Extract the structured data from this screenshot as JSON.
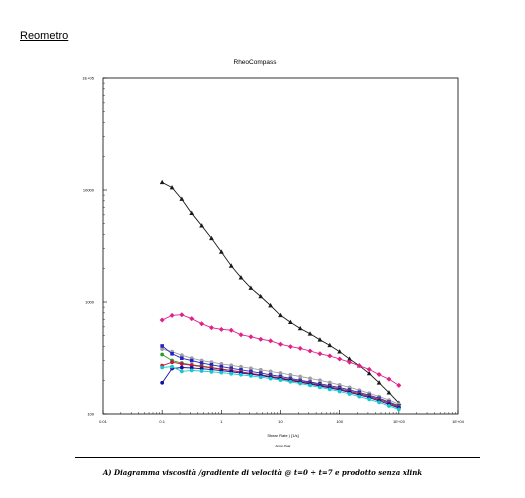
{
  "heading": "Reometro",
  "caption": "A) Diagramma viscosità /gradiente di velocità @ t=0 ÷ t=7 e prodotto senza xlink",
  "chart_data": {
    "type": "line",
    "title": "RheoCompass",
    "xlabel": "Shear Rate   )    [1/s]",
    "footer": "Anton Paar",
    "x_scale": "log",
    "y_scale": "log",
    "xlim": [
      0.01,
      10000
    ],
    "ylim": [
      100,
      100000
    ],
    "x_ticks": [
      "0.01",
      "0.1",
      "1",
      "10",
      "100",
      "1E+03",
      "1E+04"
    ],
    "y_ticks": [
      "100",
      "1000",
      "10000",
      "1E+05"
    ],
    "grid": false,
    "series": [
      {
        "color": "#1a1a1a",
        "marker": "triangle",
        "x": [
          0.1,
          0.147,
          0.215,
          0.316,
          0.464,
          0.681,
          1,
          1.47,
          2.15,
          3.16,
          4.64,
          6.81,
          10,
          14.7,
          21.5,
          31.6,
          46.4,
          68.1,
          100,
          147,
          215,
          316,
          464,
          681,
          1000
        ],
        "y": [
          11700,
          10500,
          8300,
          6200,
          4800,
          3700,
          2800,
          2100,
          1650,
          1330,
          1120,
          930,
          760,
          660,
          580,
          520,
          460,
          410,
          360,
          310,
          270,
          230,
          190,
          155,
          125
        ]
      },
      {
        "color": "#e0218a",
        "marker": "diamond",
        "x": [
          0.1,
          0.147,
          0.215,
          0.316,
          0.464,
          0.681,
          1,
          1.47,
          2.15,
          3.16,
          4.64,
          6.81,
          10,
          14.7,
          21.5,
          31.6,
          46.4,
          68.1,
          100,
          147,
          215,
          316,
          464,
          681,
          1000
        ],
        "y": [
          690,
          760,
          770,
          710,
          640,
          590,
          570,
          560,
          510,
          490,
          465,
          450,
          420,
          400,
          385,
          365,
          345,
          330,
          310,
          290,
          270,
          250,
          225,
          205,
          180
        ]
      },
      {
        "color": "#a0a0a0",
        "marker": "circle",
        "x": [
          0.1,
          0.147,
          0.215,
          0.316,
          0.464,
          0.681,
          1,
          1.47,
          2.15,
          3.16,
          4.64,
          6.81,
          10,
          14.7,
          21.5,
          31.6,
          46.4,
          68.1,
          100,
          147,
          215,
          316,
          464,
          681,
          1000
        ],
        "y": [
          380,
          360,
          335,
          315,
          300,
          290,
          280,
          272,
          264,
          256,
          248,
          240,
          232,
          224,
          216,
          208,
          200,
          191,
          182,
          173,
          163,
          153,
          143,
          133,
          122
        ]
      },
      {
        "color": "#2323c8",
        "marker": "square",
        "x": [
          0.1,
          0.147,
          0.215,
          0.316,
          0.464,
          0.681,
          1,
          1.47,
          2.15,
          3.16,
          4.64,
          6.81,
          10,
          14.7,
          21.5,
          31.6,
          46.4,
          68.1,
          100,
          147,
          215,
          316,
          464,
          681,
          1000
        ],
        "y": [
          405,
          345,
          315,
          300,
          285,
          275,
          265,
          256,
          248,
          240,
          232,
          224,
          216,
          208,
          200,
          193,
          186,
          179,
          172,
          164,
          156,
          147,
          138,
          128,
          118
        ]
      },
      {
        "color": "#2aa02a",
        "marker": "circle",
        "x": [
          0.1,
          0.147,
          0.215,
          0.316,
          0.464,
          0.681,
          1,
          1.47,
          2.15,
          3.16,
          4.64,
          6.81,
          10,
          14.7,
          21.5,
          31.6,
          46.4,
          68.1,
          100,
          147,
          215,
          316,
          464,
          681,
          1000
        ],
        "y": [
          340,
          300,
          285,
          275,
          268,
          260,
          252,
          245,
          238,
          231,
          224,
          217,
          210,
          203,
          196,
          189,
          182,
          175,
          168,
          160,
          152,
          144,
          135,
          126,
          116
        ]
      },
      {
        "color": "#c8143c",
        "marker": "circle",
        "x": [
          0.1,
          0.147,
          0.215,
          0.316,
          0.464,
          0.681,
          1,
          1.47,
          2.15,
          3.16,
          4.64,
          6.81,
          10,
          14.7,
          21.5,
          31.6,
          46.4,
          68.1,
          100,
          147,
          215,
          316,
          464,
          681,
          1000
        ],
        "y": [
          270,
          290,
          280,
          272,
          265,
          258,
          251,
          244,
          237,
          230,
          223,
          216,
          209,
          202,
          195,
          188,
          181,
          174,
          167,
          159,
          151,
          143,
          134,
          125,
          115
        ]
      },
      {
        "color": "#1010a0",
        "marker": "circle",
        "x": [
          0.1,
          0.147,
          0.215,
          0.316,
          0.464,
          0.681,
          1,
          1.47,
          2.15,
          3.16,
          4.64,
          6.81,
          10,
          14.7,
          21.5,
          31.6,
          46.4,
          68.1,
          100,
          147,
          215,
          316,
          464,
          681,
          1000
        ],
        "y": [
          190,
          255,
          260,
          258,
          254,
          249,
          244,
          238,
          232,
          226,
          220,
          213,
          206,
          199,
          192,
          185,
          178,
          171,
          164,
          156,
          148,
          140,
          131,
          122,
          113
        ]
      },
      {
        "color": "#18c8c8",
        "marker": "circle",
        "x": [
          0.1,
          0.147,
          0.215,
          0.316,
          0.464,
          0.681,
          1,
          1.47,
          2.15,
          3.16,
          4.64,
          6.81,
          10,
          14.7,
          21.5,
          31.6,
          46.4,
          68.1,
          100,
          147,
          215,
          316,
          464,
          681,
          1000
        ],
        "y": [
          260,
          265,
          240,
          245,
          242,
          238,
          234,
          229,
          224,
          219,
          213,
          207,
          201,
          194,
          187,
          180,
          173,
          166,
          159,
          151,
          143,
          135,
          127,
          118,
          110
        ]
      }
    ]
  }
}
